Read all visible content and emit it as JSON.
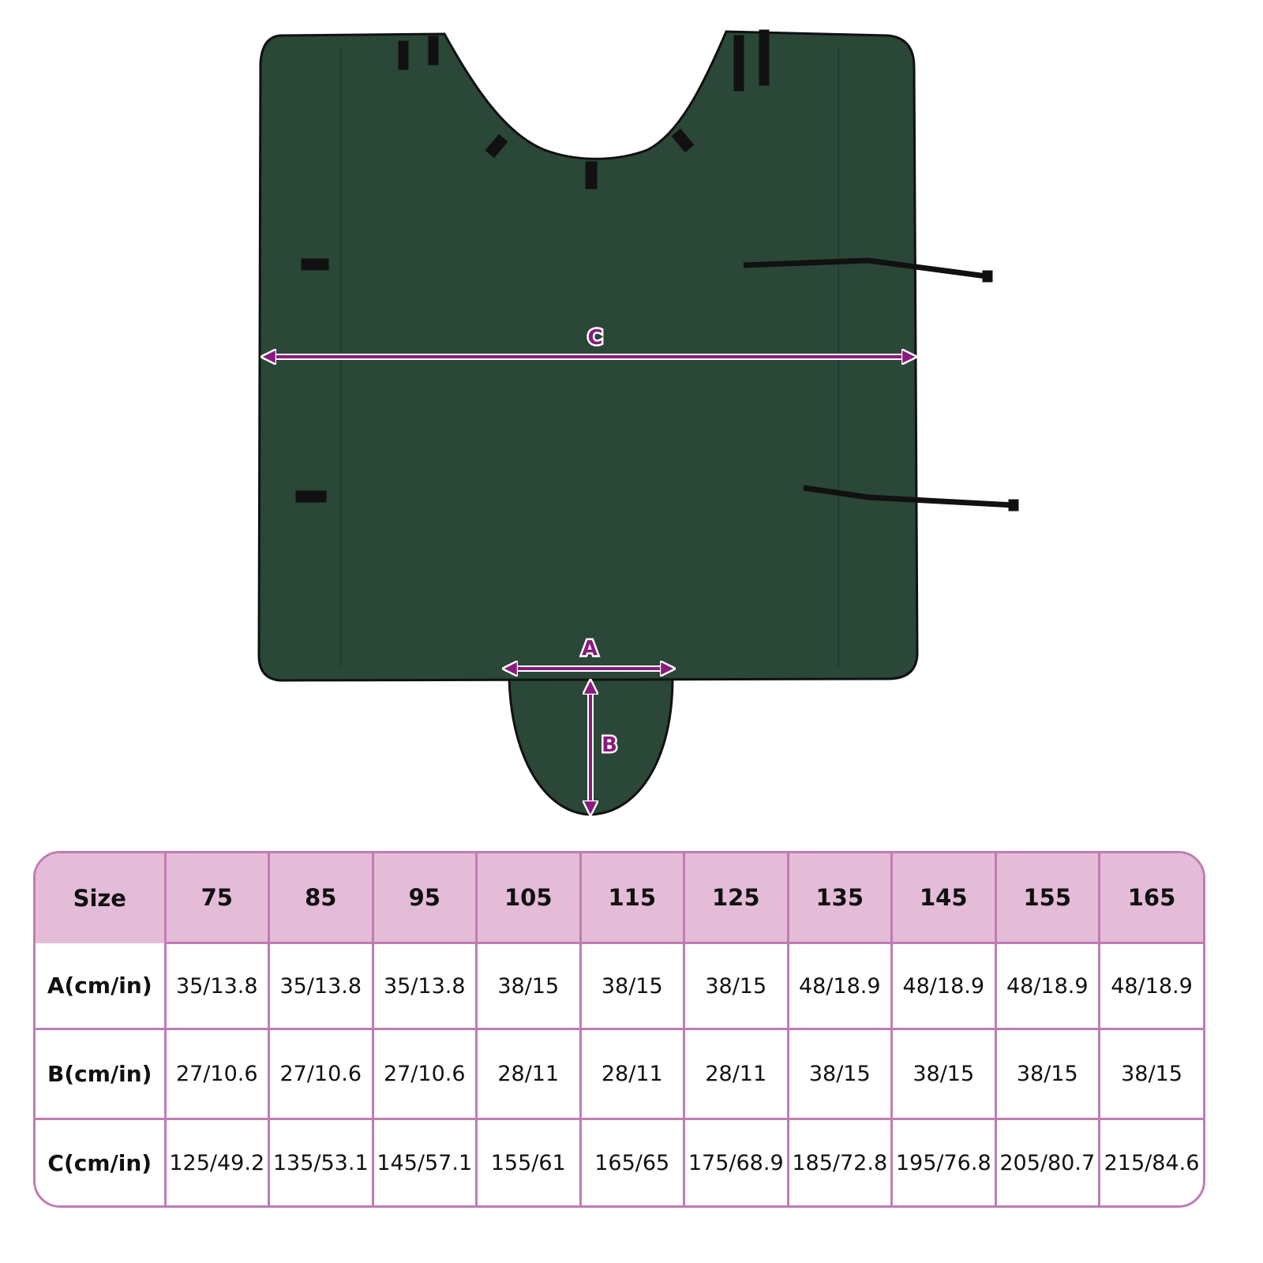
{
  "colors": {
    "fabric": "#2a4737",
    "arrow": "#8a1a7e",
    "header_bg": "#e4bcd8",
    "table_border": "#c07cb4"
  },
  "diagram": {
    "labels": {
      "a": "A",
      "b": "B",
      "c": "C"
    }
  },
  "size_table": {
    "header": [
      "Size",
      "75",
      "85",
      "95",
      "105",
      "115",
      "125",
      "135",
      "145",
      "155",
      "165"
    ],
    "rows": [
      {
        "label": "A(cm/in)",
        "values": [
          "35/13.8",
          "35/13.8",
          "35/13.8",
          "38/15",
          "38/15",
          "38/15",
          "48/18.9",
          "48/18.9",
          "48/18.9",
          "48/18.9"
        ]
      },
      {
        "label": "B(cm/in)",
        "values": [
          "27/10.6",
          "27/10.6",
          "27/10.6",
          "28/11",
          "28/11",
          "28/11",
          "38/15",
          "38/15",
          "38/15",
          "38/15"
        ]
      },
      {
        "label": "C(cm/in)",
        "values": [
          "125/49.2",
          "135/53.1",
          "145/57.1",
          "155/61",
          "165/65",
          "175/68.9",
          "185/72.8",
          "195/76.8",
          "205/80.7",
          "215/84.6"
        ]
      }
    ]
  }
}
